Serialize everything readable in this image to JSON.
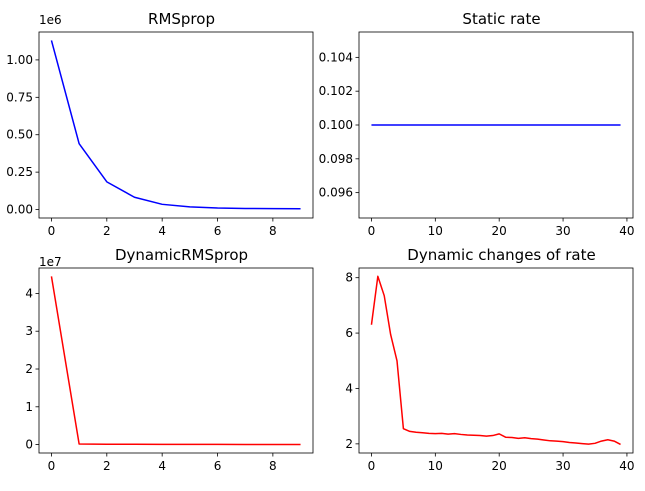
{
  "chart_data": [
    {
      "type": "line",
      "title": "RMSprop",
      "offset_text": "1e6",
      "color": "#0000ff",
      "x": [
        0,
        1,
        2,
        3,
        4,
        5,
        6,
        7,
        8,
        9
      ],
      "y": [
        1130000,
        440000,
        185000,
        82000,
        35000,
        18000,
        10000,
        7000,
        6000,
        5000
      ],
      "xlim": [
        -0.45,
        9.45
      ],
      "ylim": [
        -56500,
        1186500
      ],
      "xticks": [
        0,
        2,
        4,
        6,
        8
      ],
      "xtick_labels": [
        "0",
        "2",
        "4",
        "6",
        "8"
      ],
      "yticks": [
        0,
        250000,
        500000,
        750000,
        1000000
      ],
      "ytick_labels": [
        "0.00",
        "0.25",
        "0.50",
        "0.75",
        "1.00"
      ],
      "grid": false
    },
    {
      "type": "line",
      "title": "Static rate",
      "offset_text": "",
      "color": "#0000ff",
      "x": [
        0,
        39
      ],
      "y": [
        0.1,
        0.1
      ],
      "xlim": [
        -1.95,
        40.95
      ],
      "ylim": [
        0.0945,
        0.1055
      ],
      "xticks": [
        0,
        10,
        20,
        30,
        40
      ],
      "xtick_labels": [
        "0",
        "10",
        "20",
        "30",
        "40"
      ],
      "yticks": [
        0.096,
        0.098,
        0.1,
        0.102,
        0.104
      ],
      "ytick_labels": [
        "0.096",
        "0.098",
        "0.100",
        "0.102",
        "0.104"
      ],
      "grid": false
    },
    {
      "type": "line",
      "title": "DynamicRMSprop",
      "offset_text": "1e7",
      "color": "#ff0000",
      "x": [
        0,
        1,
        2,
        3,
        4,
        5,
        6,
        7,
        8,
        9
      ],
      "y": [
        44500000,
        150000,
        100000,
        80000,
        70000,
        60000,
        50000,
        40000,
        30000,
        20000
      ],
      "xlim": [
        -0.45,
        9.45
      ],
      "ylim": [
        -2225000,
        46725000
      ],
      "xticks": [
        0,
        2,
        4,
        6,
        8
      ],
      "xtick_labels": [
        "0",
        "2",
        "4",
        "6",
        "8"
      ],
      "yticks": [
        0,
        10000000,
        20000000,
        30000000,
        40000000
      ],
      "ytick_labels": [
        "0",
        "1",
        "2",
        "3",
        "4"
      ],
      "grid": false
    },
    {
      "type": "line",
      "title": "Dynamic changes of rate",
      "offset_text": "",
      "color": "#ff0000",
      "x": [
        0,
        1,
        2,
        3,
        4,
        5,
        6,
        7,
        8,
        9,
        10,
        11,
        12,
        13,
        14,
        15,
        16,
        17,
        18,
        19,
        20,
        21,
        22,
        23,
        24,
        25,
        26,
        27,
        28,
        29,
        30,
        31,
        32,
        33,
        34,
        35,
        36,
        37,
        38,
        39
      ],
      "y": [
        6.3,
        8.05,
        7.35,
        5.95,
        5.0,
        2.55,
        2.45,
        2.42,
        2.4,
        2.38,
        2.37,
        2.38,
        2.35,
        2.37,
        2.34,
        2.32,
        2.31,
        2.3,
        2.28,
        2.3,
        2.36,
        2.24,
        2.23,
        2.2,
        2.22,
        2.19,
        2.17,
        2.14,
        2.11,
        2.1,
        2.08,
        2.05,
        2.03,
        2.01,
        1.99,
        2.02,
        2.1,
        2.15,
        2.1,
        1.98
      ],
      "xlim": [
        -1.95,
        40.95
      ],
      "ylim": [
        1.67,
        8.35
      ],
      "xticks": [
        0,
        10,
        20,
        30,
        40
      ],
      "xtick_labels": [
        "0",
        "10",
        "20",
        "30",
        "40"
      ],
      "yticks": [
        2,
        4,
        6,
        8
      ],
      "ytick_labels": [
        "2",
        "4",
        "6",
        "8"
      ],
      "grid": false
    }
  ]
}
